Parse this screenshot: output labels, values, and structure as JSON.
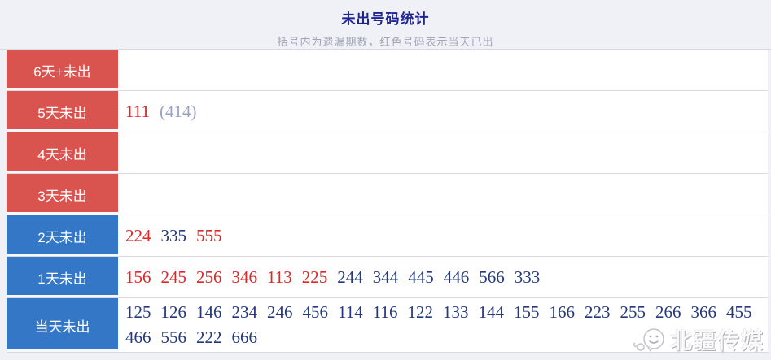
{
  "header": {
    "title": "未出号码统计",
    "subtitle": "括号内为遗漏期数，红色号码表示当天已出"
  },
  "colors": {
    "title_text": "#1f2590",
    "subtitle_text": "#a2a6b4",
    "red_label_bg": "#d9534f",
    "blue_label_bg": "#3377c6",
    "red_number": "#de2726",
    "blue_number": "#25397e",
    "gray_omission": "#9aa3c2",
    "page_bg": "#f0f1f7"
  },
  "rows": [
    {
      "label": "6天+未出",
      "label_color": "red",
      "numbers": []
    },
    {
      "label": "5天未出",
      "label_color": "red",
      "numbers": [
        {
          "text": "111",
          "color": "red"
        },
        {
          "text": "(414)",
          "color": "gray"
        }
      ]
    },
    {
      "label": "4天未出",
      "label_color": "red",
      "numbers": []
    },
    {
      "label": "3天未出",
      "label_color": "red",
      "numbers": []
    },
    {
      "label": "2天未出",
      "label_color": "blue",
      "numbers": [
        {
          "text": "224",
          "color": "red"
        },
        {
          "text": "335",
          "color": "blue"
        },
        {
          "text": "555",
          "color": "red"
        }
      ]
    },
    {
      "label": "1天未出",
      "label_color": "blue",
      "numbers": [
        {
          "text": "156",
          "color": "red"
        },
        {
          "text": "245",
          "color": "red"
        },
        {
          "text": "256",
          "color": "red"
        },
        {
          "text": "346",
          "color": "red"
        },
        {
          "text": "113",
          "color": "red"
        },
        {
          "text": "225",
          "color": "red"
        },
        {
          "text": "244",
          "color": "blue"
        },
        {
          "text": "344",
          "color": "blue"
        },
        {
          "text": "445",
          "color": "blue"
        },
        {
          "text": "446",
          "color": "blue"
        },
        {
          "text": "566",
          "color": "blue"
        },
        {
          "text": "333",
          "color": "blue"
        }
      ]
    },
    {
      "label": "当天未出",
      "label_color": "blue",
      "numbers": [
        {
          "text": "125",
          "color": "blue"
        },
        {
          "text": "126",
          "color": "blue"
        },
        {
          "text": "146",
          "color": "blue"
        },
        {
          "text": "234",
          "color": "blue"
        },
        {
          "text": "246",
          "color": "blue"
        },
        {
          "text": "456",
          "color": "blue"
        },
        {
          "text": "114",
          "color": "blue"
        },
        {
          "text": "116",
          "color": "blue"
        },
        {
          "text": "122",
          "color": "blue"
        },
        {
          "text": "133",
          "color": "blue"
        },
        {
          "text": "144",
          "color": "blue"
        },
        {
          "text": "155",
          "color": "blue"
        },
        {
          "text": "166",
          "color": "blue"
        },
        {
          "text": "223",
          "color": "blue"
        },
        {
          "text": "255",
          "color": "blue"
        },
        {
          "text": "266",
          "color": "blue"
        },
        {
          "text": "366",
          "color": "blue"
        },
        {
          "text": "455",
          "color": "blue"
        },
        {
          "text": "466",
          "color": "blue"
        },
        {
          "text": "556",
          "color": "blue"
        },
        {
          "text": "222",
          "color": "blue"
        },
        {
          "text": "666",
          "color": "blue"
        }
      ]
    }
  ],
  "watermark": {
    "text": "北疆传媒",
    "icon": "wechat-smiley-icon"
  }
}
